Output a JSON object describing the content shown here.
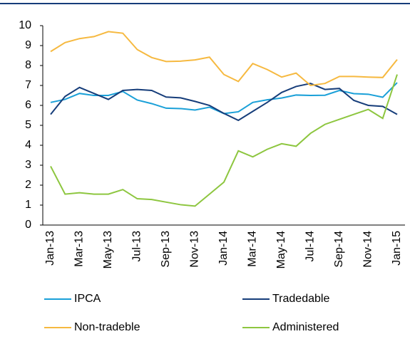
{
  "chart_data": {
    "type": "line",
    "categories": [
      "Jan-13",
      null,
      "Mar-13",
      null,
      "May-13",
      null,
      "Jul-13",
      null,
      "Sep-13",
      null,
      "Nov-13",
      null,
      "Jan-14",
      null,
      "Mar-14",
      null,
      "May-14",
      null,
      "Jul-14",
      null,
      "Sep-14",
      null,
      "Nov-14",
      null,
      "Jan-15"
    ],
    "series": [
      {
        "name": "IPCA",
        "color": "#1aa0d8",
        "values": [
          6.15,
          6.3,
          6.6,
          6.5,
          6.5,
          6.7,
          6.27,
          6.09,
          5.86,
          5.84,
          5.77,
          5.91,
          5.59,
          5.68,
          6.15,
          6.28,
          6.37,
          6.52,
          6.5,
          6.51,
          6.75,
          6.59,
          6.56,
          6.41,
          7.14
        ]
      },
      {
        "name": "Tradedable",
        "color": "#163d7a",
        "values": [
          5.55,
          6.45,
          6.9,
          6.6,
          6.3,
          6.75,
          6.8,
          6.75,
          6.42,
          6.38,
          6.2,
          6.0,
          5.6,
          5.25,
          5.7,
          6.15,
          6.65,
          6.95,
          7.1,
          6.8,
          6.85,
          6.25,
          6.0,
          5.95,
          5.55
        ]
      },
      {
        "name": "Non-tradeble",
        "color": "#f6b940",
        "values": [
          8.7,
          9.15,
          9.35,
          9.45,
          9.7,
          9.62,
          8.8,
          8.4,
          8.2,
          8.22,
          8.28,
          8.42,
          7.55,
          7.2,
          8.1,
          7.8,
          7.42,
          7.62,
          7.0,
          7.1,
          7.45,
          7.45,
          7.42,
          7.4,
          8.3
        ]
      },
      {
        "name": "Administered",
        "color": "#8dc63f",
        "values": [
          2.95,
          1.55,
          1.62,
          1.55,
          1.55,
          1.78,
          1.32,
          1.28,
          1.15,
          1.02,
          0.95,
          1.55,
          2.15,
          3.72,
          3.42,
          3.8,
          4.08,
          3.95,
          4.6,
          5.05,
          5.3,
          5.55,
          5.8,
          5.35,
          7.55
        ]
      }
    ],
    "ylim": [
      0,
      10
    ],
    "yticks": [
      0,
      1,
      2,
      3,
      4,
      5,
      6,
      7,
      8,
      9,
      10
    ],
    "grid": false
  }
}
